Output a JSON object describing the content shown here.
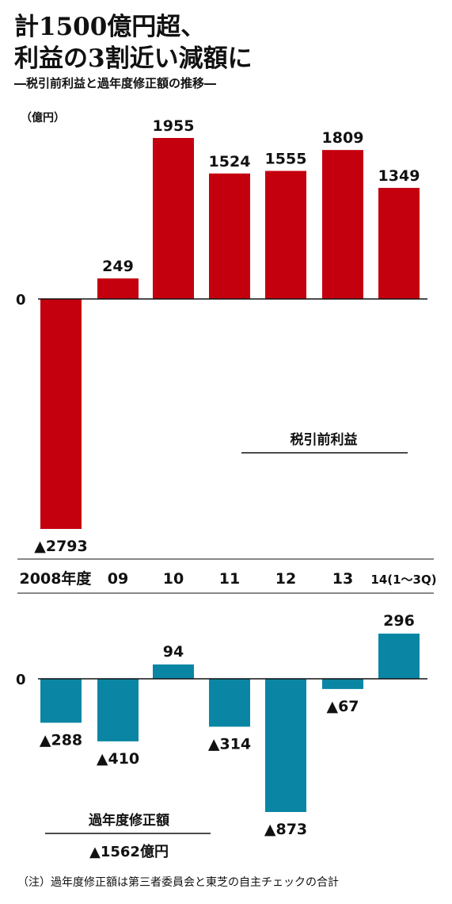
{
  "title_line1": "計1500億円超、",
  "title_line2": "利益の3割近い減額に",
  "subtitle": "―税引前利益と過年度修正額の推移―",
  "note": "（注）過年度修正額は第三者委員会と東芝の自主チェックの合計",
  "chart_data": [
    {
      "type": "bar",
      "unit_label": "（億円）",
      "series": [
        {
          "name": "税引前利益",
          "values": [
            -2793,
            249,
            1955,
            1524,
            1555,
            1809,
            1349
          ]
        }
      ],
      "value_labels": [
        "▲2793",
        "249",
        "1955",
        "1524",
        "1555",
        "1809",
        "1349"
      ],
      "color": "#c4000f",
      "ylim": [
        -2793,
        1955
      ]
    },
    {
      "type": "bar",
      "categories": [
        "2008年度",
        "09",
        "10",
        "11",
        "12",
        "13",
        "14(1～3Q)"
      ],
      "series": [
        {
          "name": "過年度修正額",
          "values": [
            -288,
            -410,
            94,
            -314,
            -873,
            -67,
            296
          ]
        }
      ],
      "value_labels": [
        "▲288",
        "▲410",
        "94",
        "▲314",
        "▲873",
        "▲67",
        "296"
      ],
      "total_label": "▲1562億円",
      "color": "#0a86a4",
      "ylim": [
        -873,
        296
      ]
    }
  ]
}
